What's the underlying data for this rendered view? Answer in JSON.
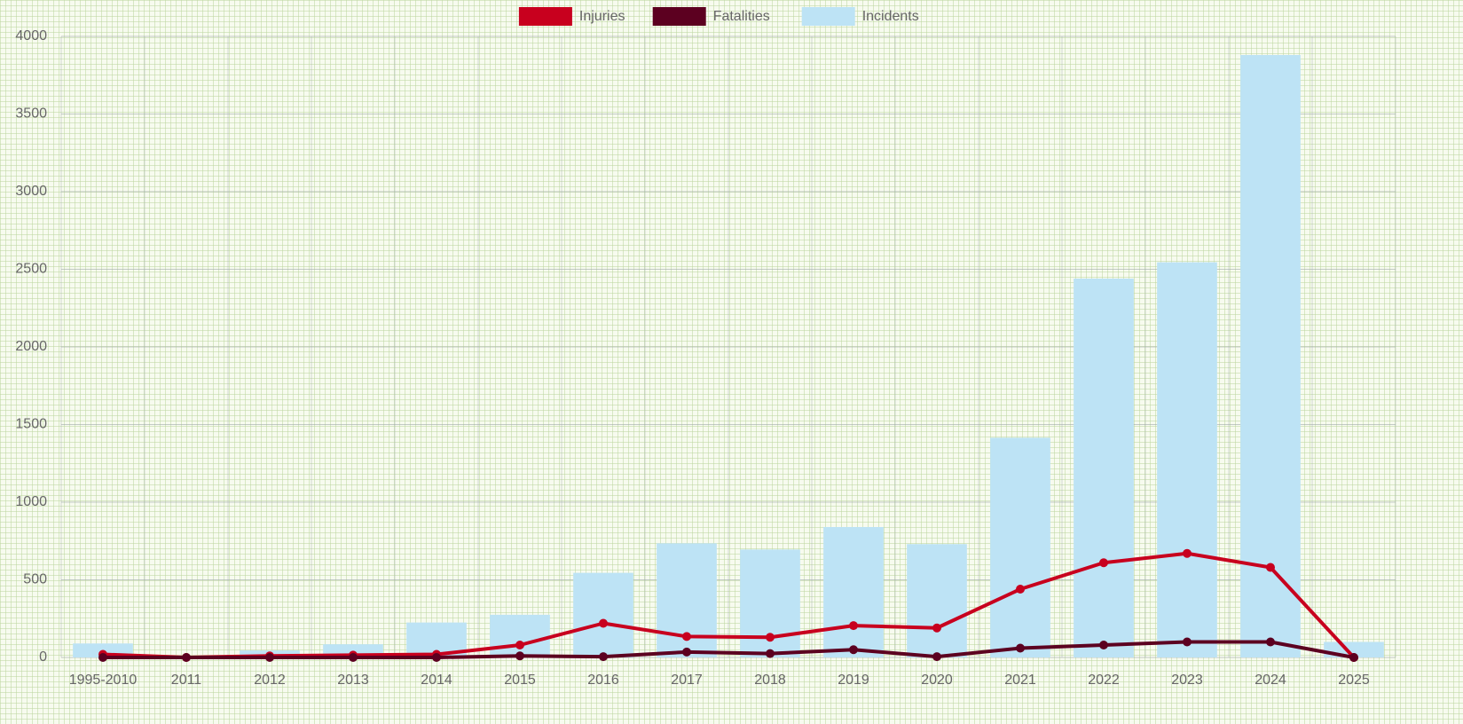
{
  "chart_data": {
    "type": "bar-line",
    "categories": [
      "1995-2010",
      "2011",
      "2012",
      "2013",
      "2014",
      "2015",
      "2016",
      "2017",
      "2018",
      "2019",
      "2020",
      "2021",
      "2022",
      "2023",
      "2024",
      "2025"
    ],
    "series": [
      {
        "name": "Injuries",
        "color": "#c8001e",
        "kind": "line",
        "values": [
          20,
          0,
          10,
          15,
          20,
          80,
          220,
          135,
          130,
          205,
          190,
          440,
          610,
          670,
          580,
          0
        ]
      },
      {
        "name": "Fatalities",
        "color": "#5c0020",
        "kind": "line",
        "values": [
          0,
          0,
          0,
          0,
          0,
          10,
          5,
          35,
          25,
          50,
          5,
          60,
          80,
          100,
          100,
          0
        ]
      },
      {
        "name": "Incidents",
        "color": "#bde3f5",
        "kind": "bar",
        "values": [
          90,
          5,
          45,
          85,
          225,
          275,
          545,
          735,
          695,
          840,
          730,
          1415,
          2440,
          2545,
          3880,
          100
        ]
      }
    ],
    "ylim": [
      0,
      4000
    ],
    "yticks": [
      0,
      500,
      1000,
      1500,
      2000,
      2500,
      3000,
      3500,
      4000
    ],
    "grid": true,
    "legend": "top"
  }
}
